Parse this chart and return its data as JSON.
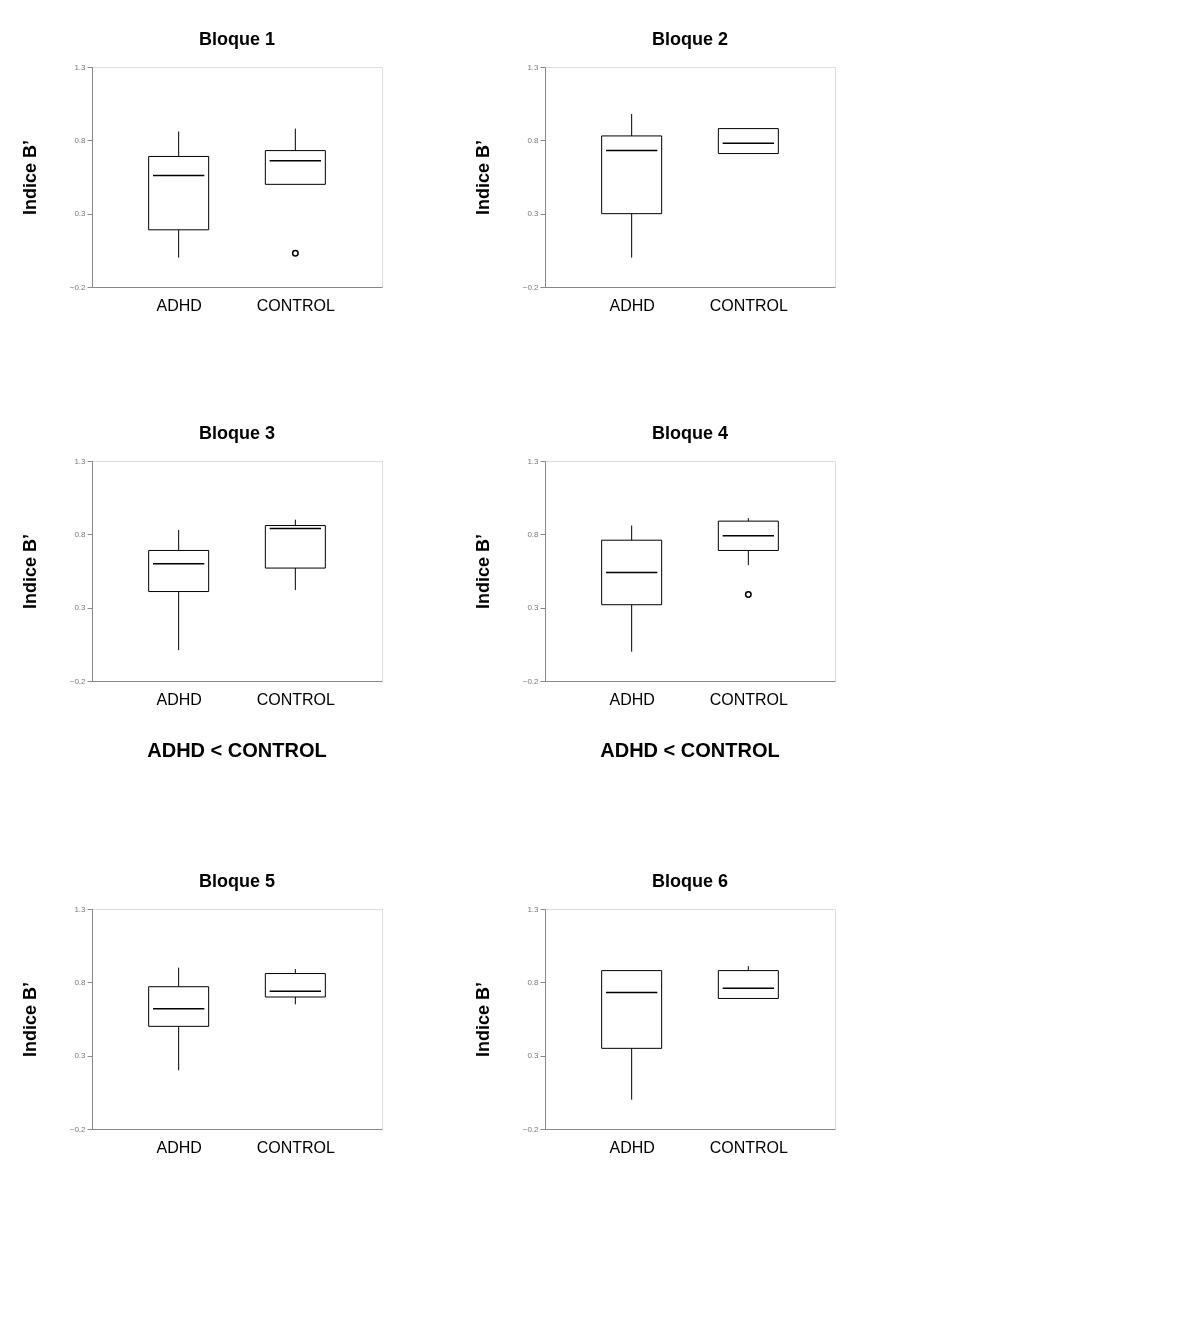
{
  "chart_data": [
    {
      "type": "box",
      "title": "Bloque 1",
      "ylabel": "Indice B’",
      "categories": [
        "ADHD",
        "CONTROL"
      ],
      "ylim": [
        -0.2,
        1.3
      ],
      "yticks": [
        -0.2,
        0.3,
        0.8,
        1.3
      ],
      "grid": false,
      "boxes": [
        {
          "low": 0.0,
          "q1": 0.19,
          "median": 0.56,
          "q3": 0.69,
          "high": 0.86
        },
        {
          "low": 0.5,
          "q1": 0.5,
          "median": 0.66,
          "q3": 0.73,
          "high": 0.88,
          "outliers": [
            0.03
          ]
        }
      ]
    },
    {
      "type": "box",
      "title": "Bloque 2",
      "ylabel": "Indice B’",
      "categories": [
        "ADHD",
        "CONTROL"
      ],
      "ylim": [
        -0.2,
        1.3
      ],
      "yticks": [
        -0.2,
        0.3,
        0.8,
        1.3
      ],
      "grid": false,
      "boxes": [
        {
          "low": 0.0,
          "q1": 0.3,
          "median": 0.73,
          "q3": 0.83,
          "high": 0.98
        },
        {
          "low": 0.71,
          "q1": 0.71,
          "median": 0.78,
          "q3": 0.88,
          "high": 0.88
        }
      ]
    },
    {
      "type": "box",
      "title": "Bloque 3",
      "ylabel": "Indice B’",
      "categories": [
        "ADHD",
        "CONTROL"
      ],
      "ylim": [
        -0.2,
        1.3
      ],
      "yticks": [
        -0.2,
        0.3,
        0.8,
        1.3
      ],
      "grid": false,
      "annotations": [
        "ADHD < CONTROL"
      ],
      "boxes": [
        {
          "low": 0.01,
          "q1": 0.41,
          "median": 0.6,
          "q3": 0.69,
          "high": 0.83
        },
        {
          "low": 0.42,
          "q1": 0.57,
          "median": 0.84,
          "q3": 0.86,
          "high": 0.9
        }
      ]
    },
    {
      "type": "box",
      "title": "Bloque 4",
      "ylabel": "Indice B’",
      "categories": [
        "ADHD",
        "CONTROL"
      ],
      "ylim": [
        -0.2,
        1.3
      ],
      "yticks": [
        -0.2,
        0.3,
        0.8,
        1.3
      ],
      "grid": false,
      "annotations": [
        "ADHD < CONTROL"
      ],
      "boxes": [
        {
          "low": 0.0,
          "q1": 0.32,
          "median": 0.54,
          "q3": 0.76,
          "high": 0.86
        },
        {
          "low": 0.59,
          "q1": 0.69,
          "median": 0.79,
          "q3": 0.89,
          "high": 0.91,
          "outliers": [
            0.39
          ]
        }
      ]
    },
    {
      "type": "box",
      "title": "Bloque 5",
      "ylabel": "Indice B’",
      "categories": [
        "ADHD",
        "CONTROL"
      ],
      "ylim": [
        -0.2,
        1.3
      ],
      "yticks": [
        -0.2,
        0.3,
        0.8,
        1.3
      ],
      "grid": false,
      "boxes": [
        {
          "low": 0.2,
          "q1": 0.5,
          "median": 0.62,
          "q3": 0.77,
          "high": 0.9
        },
        {
          "low": 0.65,
          "q1": 0.7,
          "median": 0.74,
          "q3": 0.86,
          "high": 0.89
        }
      ]
    },
    {
      "type": "box",
      "title": "Bloque 6",
      "ylabel": "Indice B’",
      "categories": [
        "ADHD",
        "CONTROL"
      ],
      "ylim": [
        -0.2,
        1.3
      ],
      "yticks": [
        -0.2,
        0.3,
        0.8,
        1.3
      ],
      "grid": false,
      "boxes": [
        {
          "low": 0.0,
          "q1": 0.35,
          "median": 0.73,
          "q3": 0.88,
          "high": 0.88
        },
        {
          "low": 0.69,
          "q1": 0.69,
          "median": 0.76,
          "q3": 0.88,
          "high": 0.91
        }
      ]
    }
  ]
}
